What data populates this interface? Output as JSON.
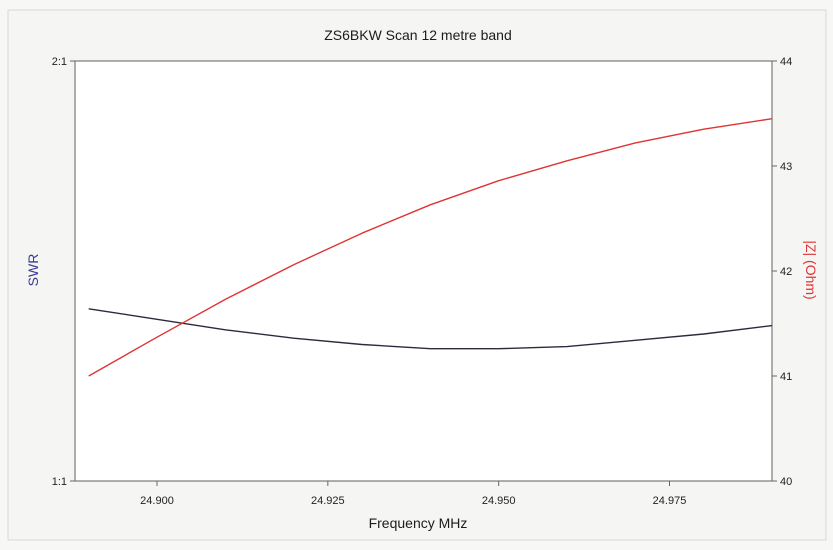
{
  "chart_data": {
    "type": "line",
    "title": "ZS6BKW Scan 12 metre band",
    "xlabel": "Frequency MHz",
    "ylabel_left": "SWR",
    "ylabel_right": "|Z| (Ohm)",
    "xlim": [
      24.888,
      24.99
    ],
    "x_ticks": [
      24.9,
      24.925,
      24.95,
      24.975
    ],
    "x_tick_labels": [
      "24.900",
      "24.925",
      "24.950",
      "24.975"
    ],
    "y_left_ticks": [
      {
        "value": 1,
        "label": "1:1"
      },
      {
        "value": 2,
        "label": "2:1"
      }
    ],
    "ylim_left": [
      1,
      2
    ],
    "y_right_ticks": [
      40,
      41,
      42,
      43,
      44
    ],
    "ylim_right": [
      40,
      44
    ],
    "grid": false,
    "colors": {
      "swr": "#2b2b3d",
      "impedance": "#e03434",
      "swr_label": "#3b3b9a",
      "z_label": "#e03434"
    },
    "series": [
      {
        "axis": "left",
        "color_key": "swr",
        "x": [
          24.89,
          24.9,
          24.91,
          24.92,
          24.93,
          24.94,
          24.95,
          24.96,
          24.97,
          24.98,
          24.99
        ],
        "values": [
          1.41,
          1.385,
          1.36,
          1.34,
          1.325,
          1.315,
          1.315,
          1.32,
          1.335,
          1.35,
          1.37
        ]
      },
      {
        "axis": "right",
        "color_key": "impedance",
        "x": [
          24.89,
          24.9,
          24.91,
          24.92,
          24.93,
          24.94,
          24.95,
          24.96,
          24.97,
          24.98,
          24.99
        ],
        "values": [
          41.0,
          41.37,
          41.73,
          42.06,
          42.36,
          42.63,
          42.86,
          43.05,
          43.22,
          43.35,
          43.45
        ]
      }
    ]
  }
}
